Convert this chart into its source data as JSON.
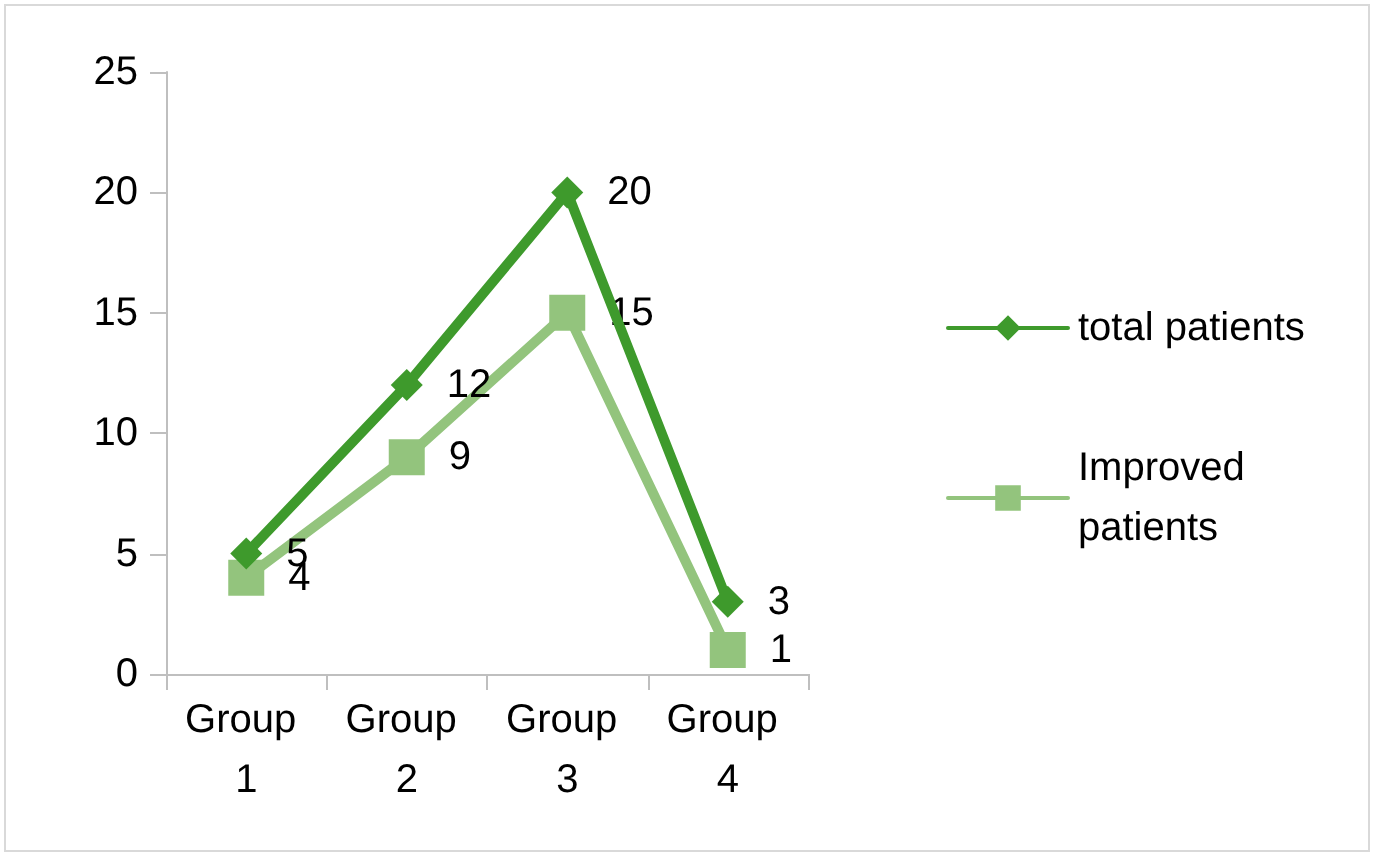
{
  "chart_data": {
    "type": "line",
    "categories": [
      "Group 1",
      "Group 2",
      "Group 3",
      "Group 4"
    ],
    "series": [
      {
        "name": "total patients",
        "color": "#3e9a2c",
        "values": [
          5,
          12,
          20,
          3
        ],
        "marker": "diamond"
      },
      {
        "name": "Improved patients",
        "color": "#93c47d",
        "values": [
          4,
          9,
          15,
          1
        ],
        "marker": "square"
      }
    ],
    "ylim": [
      0,
      25
    ],
    "yticks": [
      0,
      5,
      10,
      15,
      20,
      25
    ],
    "grid": false,
    "legend": "right",
    "data_labels": true,
    "line_style": "solid"
  }
}
